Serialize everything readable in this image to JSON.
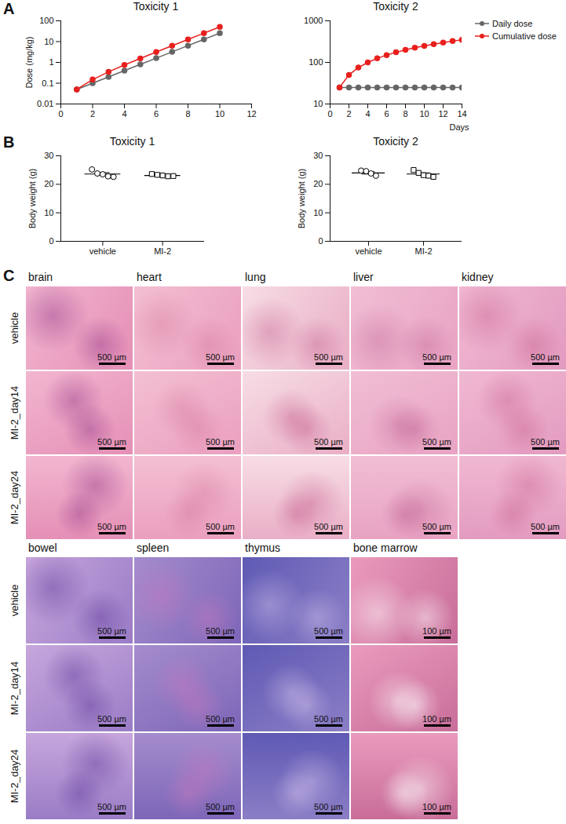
{
  "panels": [
    "A",
    "B",
    "C"
  ],
  "chart_data": [
    {
      "type": "line",
      "title": "Toxicity 1",
      "ylabel": "Dose (mg/kg)",
      "log": "y",
      "x": [
        1,
        2,
        3,
        4,
        5,
        6,
        7,
        8,
        9,
        10
      ],
      "series": [
        {
          "name": "Daily dose",
          "color": "#666666",
          "marker": "circle",
          "values": [
            0.05,
            0.1,
            0.2,
            0.4,
            0.8,
            1.6,
            3.2,
            6.4,
            12.8,
            25.6
          ]
        },
        {
          "name": "Cumulative dose",
          "color": "#e8201e",
          "marker": "circle",
          "values": [
            0.05,
            0.15,
            0.35,
            0.75,
            1.55,
            3.15,
            6.35,
            12.75,
            25.55,
            51.15
          ]
        }
      ],
      "xlim": [
        0,
        12
      ],
      "xticks": [
        0,
        2,
        4,
        6,
        8,
        10,
        12
      ],
      "ylim": [
        0.01,
        100
      ],
      "yticks": [
        0.01,
        0.1,
        1,
        10,
        100
      ]
    },
    {
      "type": "line",
      "title": "Toxicity 2",
      "xlabel": "Days",
      "log": "y",
      "legend": "right",
      "x": [
        1,
        2,
        3,
        4,
        5,
        6,
        7,
        8,
        9,
        10,
        11,
        12,
        13,
        14
      ],
      "series": [
        {
          "name": "Daily dose",
          "color": "#666666",
          "marker": "circle",
          "values": [
            25,
            25,
            25,
            25,
            25,
            25,
            25,
            25,
            25,
            25,
            25,
            25,
            25,
            25
          ]
        },
        {
          "name": "Cumulative dose",
          "color": "#e8201e",
          "marker": "circle",
          "values": [
            25,
            50,
            75,
            100,
            125,
            150,
            175,
            200,
            225,
            250,
            275,
            300,
            325,
            350
          ]
        }
      ],
      "xlim": [
        0,
        14
      ],
      "xticks": [
        0,
        2,
        4,
        6,
        8,
        10,
        12,
        14
      ],
      "ylim": [
        10,
        1000
      ],
      "yticks": [
        10,
        100,
        1000
      ]
    },
    {
      "type": "scatter",
      "title": "Toxicity 1",
      "ylabel": "Body weight (g)",
      "series": [
        {
          "name": "vehicle",
          "marker": "circle",
          "values": [
            25.2,
            23.8,
            23.5,
            22.8,
            22.6
          ],
          "mean": 23.6,
          "error": 0.5
        },
        {
          "name": "MI-2",
          "marker": "square",
          "values": [
            23.6,
            23.3,
            23.1,
            22.8,
            22.9
          ],
          "mean": 23.1,
          "error": 0.2
        }
      ],
      "ylim": [
        0,
        30
      ],
      "yticks": [
        0,
        10,
        20,
        30
      ]
    },
    {
      "type": "scatter",
      "title": "Toxicity 2",
      "ylabel": "Body weight (g)",
      "series": [
        {
          "name": "vehicle",
          "marker": "circle",
          "values": [
            24.8,
            24.6,
            23.8,
            23.0
          ],
          "mean": 24.0,
          "error": 0.4
        },
        {
          "name": "MI-2",
          "marker": "square",
          "values": [
            25.0,
            24.0,
            23.2,
            23.0,
            22.6
          ],
          "mean": 23.6,
          "error": 0.4
        }
      ],
      "ylim": [
        0,
        30
      ],
      "yticks": [
        0,
        10,
        20,
        30
      ]
    }
  ],
  "histology": {
    "rows": [
      "vehicle",
      "MI-2_day14",
      "MI-2_day24"
    ],
    "groups": [
      {
        "columns": [
          {
            "organ": "brain",
            "scale_bar": "500 µm"
          },
          {
            "organ": "heart",
            "scale_bar": "500 µm"
          },
          {
            "organ": "lung",
            "scale_bar": "500 µm"
          },
          {
            "organ": "liver",
            "scale_bar": "500 µm"
          },
          {
            "organ": "kidney",
            "scale_bar": "500 µm"
          }
        ]
      },
      {
        "columns": [
          {
            "organ": "bowel",
            "scale_bar": "500 µm"
          },
          {
            "organ": "spleen",
            "scale_bar": "500 µm"
          },
          {
            "organ": "thymus",
            "scale_bar": "500 µm"
          },
          {
            "organ": "bone marrow",
            "scale_bar": "100 µm"
          }
        ]
      }
    ]
  }
}
